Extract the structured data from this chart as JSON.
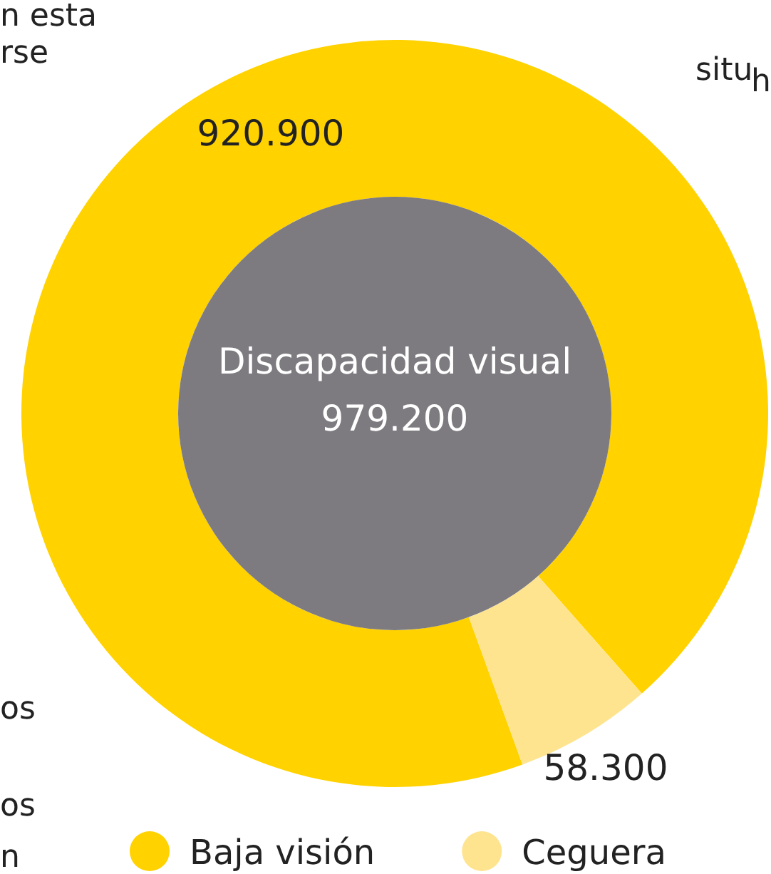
{
  "chart_data": {
    "type": "donut",
    "categories": [
      "Baja visión",
      "Ceguera"
    ],
    "values": [
      920900,
      58300
    ],
    "colors": [
      "#ffd200",
      "#ffe48f"
    ],
    "value_labels": [
      "920.900",
      "58.300"
    ],
    "legend": "bottom",
    "annotations": [
      "Discapacidad visual",
      "979.200",
      "n esta",
      "rse",
      "situ",
      "h",
      "os",
      "os",
      "n"
    ]
  }
}
